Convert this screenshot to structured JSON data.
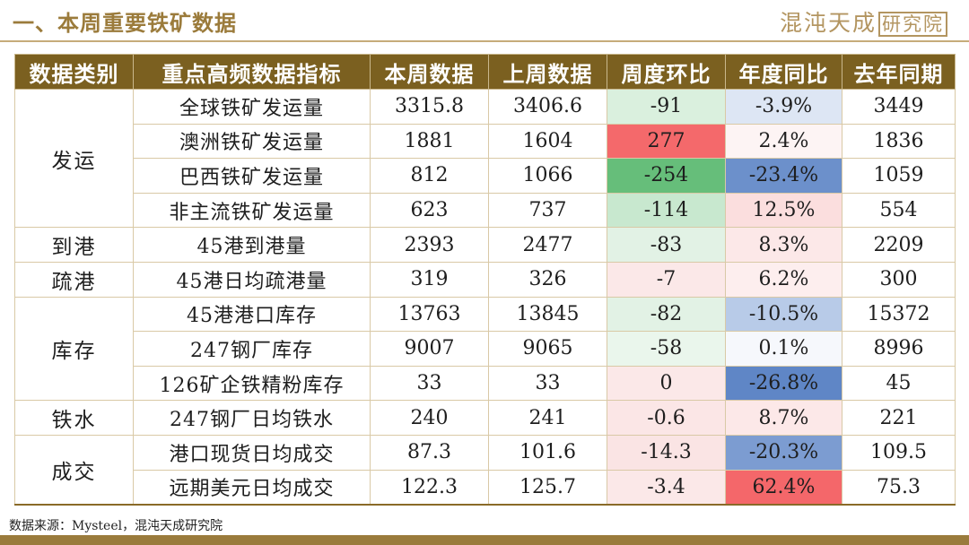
{
  "page": {
    "title": "一、本周重要铁矿数据",
    "brand_name": "混沌天成",
    "brand_institute": "研究院",
    "source": "数据来源：Mysteel，混沌天成研究院"
  },
  "table": {
    "headers": [
      "数据类别",
      "重点高频数据指标",
      "本周数据",
      "上周数据",
      "周度环比",
      "年度同比",
      "去年同期"
    ],
    "groups": [
      {
        "category": "发运",
        "rows": [
          {
            "indicator": "全球铁矿发运量",
            "this_week": "3315.8",
            "last_week": "3406.6",
            "wow": "-91",
            "yoy": "-3.9%",
            "last_year": "3449",
            "wow_color": "#daf0de",
            "yoy_color": "#dde6f4"
          },
          {
            "indicator": "澳洲铁矿发运量",
            "this_week": "1881",
            "last_week": "1604",
            "wow": "277",
            "yoy": "2.4%",
            "last_year": "1836",
            "wow_color": "#f4696b",
            "yoy_color": "#fdf4f4"
          },
          {
            "indicator": "巴西铁矿发运量",
            "this_week": "812",
            "last_week": "1066",
            "wow": "-254",
            "yoy": "-23.4%",
            "last_year": "1059",
            "wow_color": "#66be7a",
            "yoy_color": "#6c90cb"
          },
          {
            "indicator": "非主流铁矿发运量",
            "this_week": "623",
            "last_week": "737",
            "wow": "-114",
            "yoy": "12.5%",
            "last_year": "554",
            "wow_color": "#c8e8cf",
            "yoy_color": "#fbdede"
          }
        ]
      },
      {
        "category": "到港",
        "rows": [
          {
            "indicator": "45港到港量",
            "this_week": "2393",
            "last_week": "2477",
            "wow": "-83",
            "yoy": "8.3%",
            "last_year": "2209",
            "wow_color": "#e2f2e5",
            "yoy_color": "#fce8e8"
          }
        ]
      },
      {
        "category": "疏港",
        "rows": [
          {
            "indicator": "45港日均疏港量",
            "this_week": "319",
            "last_week": "326",
            "wow": "-7",
            "yoy": "6.2%",
            "last_year": "300",
            "wow_color": "#fbe8e8",
            "yoy_color": "#fdeeee"
          }
        ]
      },
      {
        "category": "库存",
        "rows": [
          {
            "indicator": "45港港口库存",
            "this_week": "13763",
            "last_week": "13845",
            "wow": "-82",
            "yoy": "-10.5%",
            "last_year": "15372",
            "wow_color": "#e2f2e5",
            "yoy_color": "#b8cbe8"
          },
          {
            "indicator": "247钢厂库存",
            "this_week": "9007",
            "last_week": "9065",
            "wow": "-58",
            "yoy": "0.1%",
            "last_year": "8996",
            "wow_color": "#eaf6ec",
            "yoy_color": "#f6f8fc"
          },
          {
            "indicator": "126矿企铁精粉库存",
            "this_week": "33",
            "last_week": "33",
            "wow": "0",
            "yoy": "-26.8%",
            "last_year": "45",
            "wow_color": "#fbe8e8",
            "yoy_color": "#5f86c6"
          }
        ]
      },
      {
        "category": "铁水",
        "rows": [
          {
            "indicator": "247钢厂日均铁水",
            "this_week": "240",
            "last_week": "241",
            "wow": "-0.6",
            "yoy": "8.7%",
            "last_year": "221",
            "wow_color": "#fbe6e6",
            "yoy_color": "#fce8e8"
          }
        ]
      },
      {
        "category": "成交",
        "rows": [
          {
            "indicator": "港口现货日均成交",
            "this_week": "87.3",
            "last_week": "101.6",
            "wow": "-14.3",
            "yoy": "-20.3%",
            "last_year": "109.5",
            "wow_color": "#fae4e4",
            "yoy_color": "#7c9cd1"
          },
          {
            "indicator": "远期美元日均成交",
            "this_week": "122.3",
            "last_week": "125.7",
            "wow": "-3.4",
            "yoy": "62.4%",
            "last_year": "75.3",
            "wow_color": "#fbe8e8",
            "yoy_color": "#f4676a"
          }
        ]
      }
    ]
  }
}
